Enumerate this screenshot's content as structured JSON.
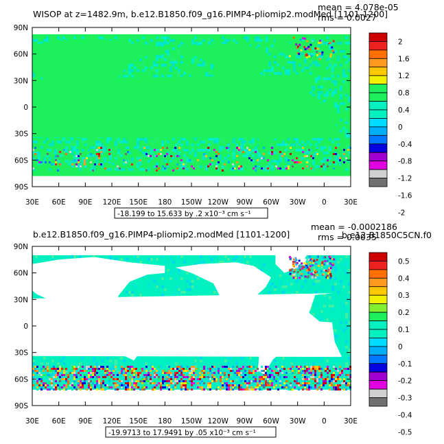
{
  "panels": [
    {
      "title": "WISOP at z=1482.9m, b.e12.B1850.f09_g16.PIMP4-pliomip2.modMed [1101-1200]",
      "mean_text": "mean = 4.078e-05",
      "rms_text": "rms = 0.0027",
      "range_text": "-18.199 to 15.633 by .2 x10⁻³ cm s⁻¹",
      "colorbar_labels": [
        "2",
        "1.6",
        "1.2",
        "0.8",
        "0.4",
        "0",
        "-0.4",
        "-0.8",
        "-1.2",
        "-1.6",
        "-2"
      ]
    },
    {
      "title": "b.e12.B1850.f09_g16.PIMP4-pliomip2.modMed [1101-1200]",
      "mean_text": "mean = -0.0002186",
      "rms_text": "rms = 0.0035",
      "overlap_text": "b.e12.B1850C5CN.f0",
      "range_text": "-19.9713 to 17.9491 by .05 x10⁻³ cm s⁻¹",
      "colorbar_labels": [
        "0.5",
        "0.4",
        "0.3",
        "0.2",
        "0.1",
        "0",
        "-0.1",
        "-0.2",
        "-0.3",
        "-0.4",
        "-0.5"
      ]
    }
  ],
  "axes": {
    "lat_labels": [
      "90N",
      "60N",
      "30N",
      "0",
      "30S",
      "60S",
      "90S"
    ],
    "lon_labels": [
      "30E",
      "60E",
      "90E",
      "120E",
      "150E",
      "180",
      "150W",
      "120W",
      "90W",
      "60W",
      "30W",
      "0",
      "30E"
    ]
  },
  "colors": {
    "land_top": "#1cf05a",
    "ocean_noise_top": [
      "#00e8d0",
      "#00f0c8",
      "#20f070",
      "#00e4c4"
    ],
    "ocean_bottom": "#00f0c0",
    "ocean_bottom_noise": [
      "#00d8f0",
      "#40f0a0",
      "#00e8d8"
    ],
    "colorbar_palette": [
      "#cc0000",
      "#ee2020",
      "#ff7000",
      "#ff9a20",
      "#ffc800",
      "#f0f000",
      "#1cf05a",
      "#00f0c0",
      "#00dcff",
      "#00b0ff",
      "#0078ff",
      "#0000e0",
      "#a000d0",
      "#e000e0",
      "#d0d0d0",
      "#707070"
    ],
    "colorbar_colors_top": [
      "#cc0000",
      "#ee2020",
      "#ff7000",
      "#ff9a20",
      "#ffc800",
      "#f0f000",
      "#1cf05a",
      "#1cf05a",
      "#00f0c0",
      "#00f0c0",
      "#00dcff",
      "#00b0ff",
      "#0078ff",
      "#0000e0",
      "#a000d0",
      "#e000e0",
      "#d0d0d0",
      "#707070"
    ],
    "colorbar_colors_bottom": [
      "#cc0000",
      "#ee2020",
      "#ff7000",
      "#ff9a20",
      "#ffc800",
      "#f0f000",
      "#80f030",
      "#1cf05a",
      "#00f0c0",
      "#00f0c0",
      "#00dcff",
      "#00b0ff",
      "#0078ff",
      "#0000e0",
      "#a000d0",
      "#e000e0",
      "#d0d0d0",
      "#707070"
    ]
  }
}
